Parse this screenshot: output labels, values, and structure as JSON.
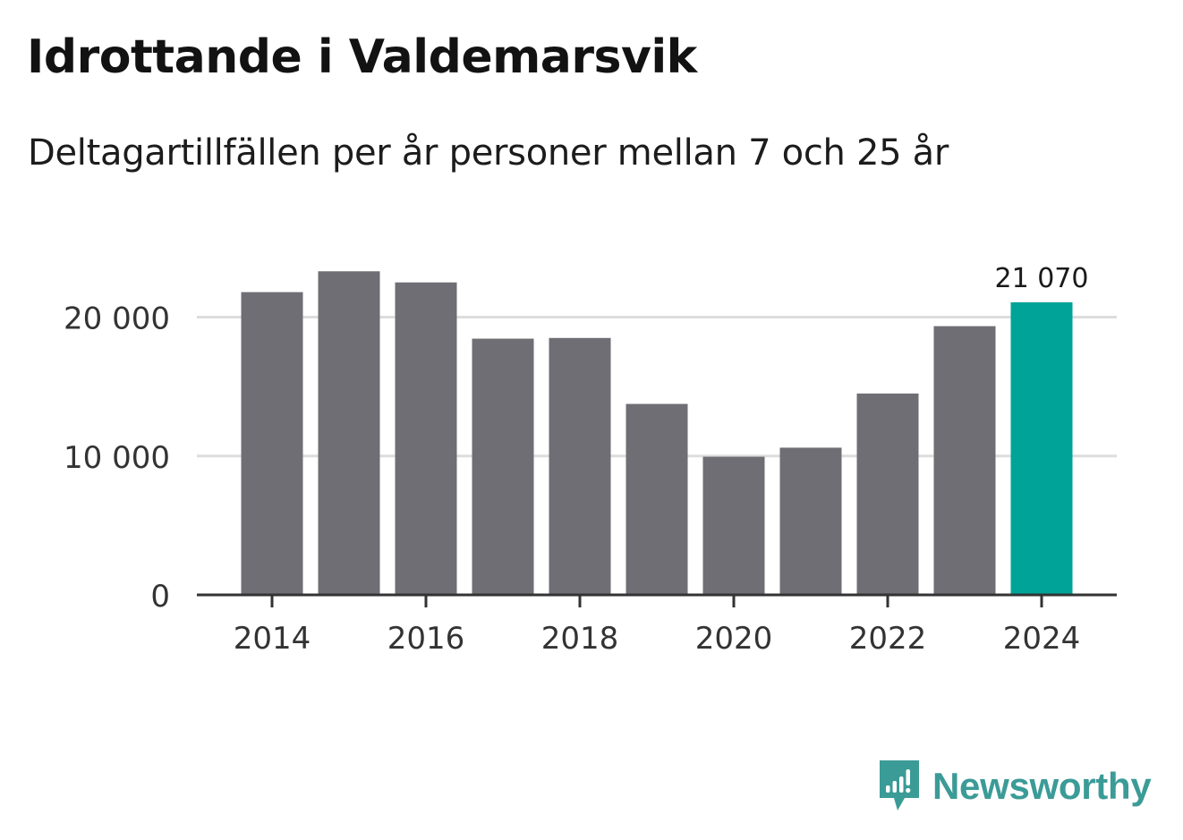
{
  "header": {
    "title": "Idrottande i Valdemarsvik",
    "subtitle": "Deltagartillfällen per år personer mellan 7 och 25 år"
  },
  "brand": {
    "name": "Newsworthy",
    "logo_icon": "newsworthy-logo-icon",
    "color": "#3b9b97"
  },
  "colors": {
    "bar": "#6f6e74",
    "highlight": "#00a398",
    "grid": "#dddddd",
    "axis": "#333333"
  },
  "chart_data": {
    "type": "bar",
    "title": "Idrottande i Valdemarsvik",
    "subtitle": "Deltagartillfällen per år personer mellan 7 och 25 år",
    "xlabel": "",
    "ylabel": "",
    "categories": [
      "2014",
      "2015",
      "2016",
      "2017",
      "2018",
      "2019",
      "2020",
      "2021",
      "2022",
      "2023",
      "2024"
    ],
    "values": [
      21800,
      23300,
      22500,
      18450,
      18500,
      13750,
      9950,
      10600,
      14500,
      19350,
      21070
    ],
    "highlight_index": 10,
    "data_labels": [
      {
        "index": 10,
        "text": "21 070"
      }
    ],
    "x_tick_labels": [
      "2014",
      "2016",
      "2018",
      "2020",
      "2022",
      "2024"
    ],
    "y_ticks": [
      0,
      10000,
      20000
    ],
    "y_tick_labels": [
      "0",
      "10 000",
      "20 000"
    ],
    "ylim": [
      0,
      23500
    ],
    "grid": true
  }
}
